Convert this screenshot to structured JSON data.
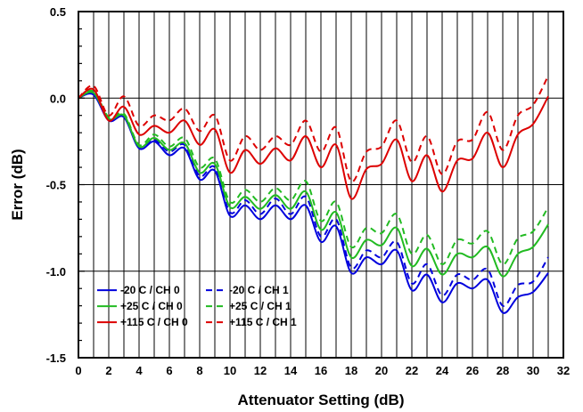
{
  "chart_data": {
    "type": "line",
    "title": "",
    "xlabel": "Attenuator Setting (dB)",
    "ylabel": "Error (dB)",
    "xlim": [
      0,
      32
    ],
    "ylim": [
      -1.5,
      0.5
    ],
    "xticks": [
      "0",
      "2",
      "4",
      "6",
      "8",
      "10",
      "12",
      "14",
      "16",
      "18",
      "20",
      "22",
      "24",
      "26",
      "28",
      "30",
      "32"
    ],
    "yticks": [
      "0.5",
      "0.0",
      "-0.5",
      "-1.0",
      "-1.5"
    ],
    "grid": "vertical every 1 dB, horizontal every 0.5 dB",
    "legend_position": "bottom-left",
    "x": [
      0,
      1,
      2,
      3,
      4,
      5,
      6,
      7,
      8,
      9,
      10,
      11,
      12,
      13,
      14,
      15,
      16,
      17,
      18,
      19,
      20,
      21,
      22,
      23,
      24,
      25,
      26,
      27,
      28,
      29,
      30,
      31
    ],
    "series": [
      {
        "name": "-20 C / CH 0",
        "color": "#0000dd",
        "dash": "solid",
        "values": [
          0.0,
          0.02,
          -0.13,
          -0.11,
          -0.29,
          -0.25,
          -0.33,
          -0.29,
          -0.47,
          -0.42,
          -0.68,
          -0.62,
          -0.7,
          -0.62,
          -0.7,
          -0.62,
          -0.83,
          -0.74,
          -1.01,
          -0.92,
          -0.96,
          -0.88,
          -1.11,
          -1.02,
          -1.18,
          -1.07,
          -1.1,
          -1.05,
          -1.24,
          -1.15,
          -1.12,
          -1.01
        ]
      },
      {
        "name": "-20 C / CH 1",
        "color": "#0000dd",
        "dash": "dashed",
        "values": [
          0.0,
          0.03,
          -0.12,
          -0.1,
          -0.28,
          -0.24,
          -0.31,
          -0.27,
          -0.45,
          -0.4,
          -0.66,
          -0.59,
          -0.67,
          -0.58,
          -0.67,
          -0.57,
          -0.8,
          -0.7,
          -0.98,
          -0.88,
          -0.92,
          -0.83,
          -1.07,
          -0.96,
          -1.14,
          -1.02,
          -1.05,
          -0.99,
          -1.2,
          -1.08,
          -1.06,
          -0.92
        ]
      },
      {
        "name": "+25 C / CH 0",
        "color": "#22bb22",
        "dash": "solid",
        "values": [
          0.0,
          0.03,
          -0.12,
          -0.1,
          -0.28,
          -0.23,
          -0.3,
          -0.26,
          -0.43,
          -0.38,
          -0.63,
          -0.57,
          -0.64,
          -0.56,
          -0.64,
          -0.54,
          -0.76,
          -0.66,
          -0.92,
          -0.82,
          -0.85,
          -0.75,
          -0.97,
          -0.87,
          -1.02,
          -0.9,
          -0.92,
          -0.86,
          -1.03,
          -0.9,
          -0.86,
          -0.73
        ]
      },
      {
        "name": "+25 C / CH 1",
        "color": "#22bb22",
        "dash": "dashed",
        "values": [
          0.0,
          0.04,
          -0.11,
          -0.09,
          -0.27,
          -0.21,
          -0.28,
          -0.23,
          -0.4,
          -0.35,
          -0.6,
          -0.53,
          -0.6,
          -0.52,
          -0.59,
          -0.48,
          -0.71,
          -0.6,
          -0.86,
          -0.75,
          -0.78,
          -0.67,
          -0.9,
          -0.79,
          -0.96,
          -0.82,
          -0.84,
          -0.77,
          -0.96,
          -0.81,
          -0.77,
          -0.63
        ]
      },
      {
        "name": "+115 C / CH 0",
        "color": "#dd0000",
        "dash": "solid",
        "values": [
          0.0,
          0.05,
          -0.13,
          -0.05,
          -0.21,
          -0.16,
          -0.2,
          -0.13,
          -0.27,
          -0.18,
          -0.43,
          -0.3,
          -0.38,
          -0.29,
          -0.36,
          -0.22,
          -0.4,
          -0.27,
          -0.58,
          -0.41,
          -0.38,
          -0.24,
          -0.48,
          -0.33,
          -0.54,
          -0.36,
          -0.35,
          -0.2,
          -0.4,
          -0.21,
          -0.15,
          0.01
        ]
      },
      {
        "name": "+115 C / CH 1",
        "color": "#dd0000",
        "dash": "dashed",
        "values": [
          0.0,
          0.07,
          -0.1,
          0.01,
          -0.16,
          -0.1,
          -0.13,
          -0.06,
          -0.19,
          -0.1,
          -0.36,
          -0.22,
          -0.3,
          -0.22,
          -0.27,
          -0.13,
          -0.31,
          -0.17,
          -0.48,
          -0.31,
          -0.28,
          -0.13,
          -0.37,
          -0.22,
          -0.44,
          -0.25,
          -0.24,
          -0.08,
          -0.3,
          -0.1,
          -0.04,
          0.13
        ]
      }
    ]
  }
}
